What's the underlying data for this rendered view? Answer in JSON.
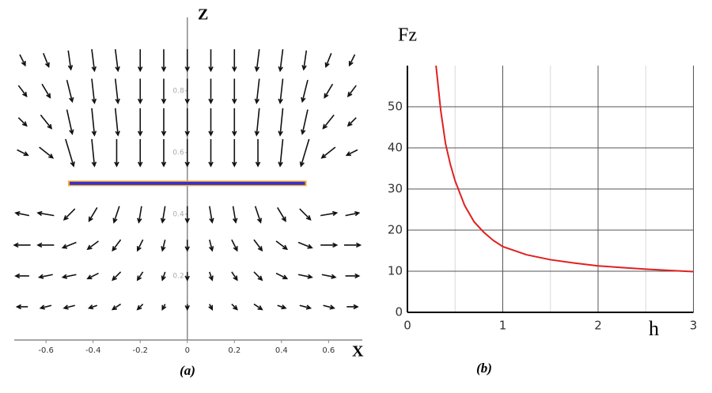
{
  "chart_data": [
    {
      "type": "quiver",
      "caption": "(a)",
      "xlabel": "X",
      "ylabel": "Z",
      "xlim": [
        -0.74,
        0.75
      ],
      "ylim": [
        0,
        1.02
      ],
      "xticks": [
        -0.6,
        -0.4,
        -0.2,
        0,
        0.2,
        0.4,
        0.6
      ],
      "yticks": [
        0.2,
        0.4,
        0.6,
        0.8
      ],
      "color": "#111111",
      "x": [
        -0.7,
        -0.6,
        -0.5,
        -0.4,
        -0.3,
        -0.2,
        -0.1,
        0,
        0.1,
        0.2,
        0.3,
        0.4,
        0.5,
        0.6,
        0.7
      ],
      "z": [
        0.9,
        0.8,
        0.7,
        0.6,
        0.4,
        0.3,
        0.2,
        0.1
      ],
      "u": [
        [
          0.2,
          0.2,
          0.1,
          0.1,
          0.1,
          0,
          0,
          0,
          0,
          0,
          -0.1,
          -0.1,
          -0.1,
          -0.2,
          -0.2
        ],
        [
          0.3,
          0.3,
          0.2,
          0.1,
          0.1,
          0,
          0,
          0,
          0,
          0,
          -0.1,
          -0.1,
          -0.2,
          -0.3,
          -0.3
        ],
        [
          0.3,
          0.4,
          0.2,
          0.1,
          0.1,
          0,
          0,
          0,
          0,
          0,
          -0.1,
          -0.1,
          -0.2,
          -0.4,
          -0.3
        ],
        [
          0.4,
          0.5,
          0.3,
          0.1,
          0,
          0,
          0,
          0,
          0,
          0,
          0,
          -0.1,
          -0.3,
          -0.5,
          -0.4
        ],
        [
          -0.5,
          -0.6,
          -0.4,
          -0.3,
          -0.2,
          -0.1,
          -0.1,
          0,
          0.1,
          0.1,
          0.2,
          0.3,
          0.4,
          0.6,
          0.5
        ],
        [
          -0.6,
          -0.6,
          -0.5,
          -0.4,
          -0.3,
          -0.2,
          -0.1,
          0,
          0.1,
          0.2,
          0.3,
          0.4,
          0.5,
          0.6,
          0.6
        ],
        [
          -0.5,
          -0.5,
          -0.5,
          -0.4,
          -0.3,
          -0.2,
          -0.1,
          0,
          0.1,
          0.2,
          0.3,
          0.4,
          0.5,
          0.5,
          0.5
        ],
        [
          -0.4,
          -0.4,
          -0.4,
          -0.3,
          -0.3,
          -0.2,
          -0.1,
          0,
          0.1,
          0.2,
          0.3,
          0.3,
          0.4,
          0.4,
          0.4
        ]
      ],
      "v": [
        [
          -0.4,
          -0.5,
          -0.7,
          -0.8,
          -0.8,
          -0.8,
          -0.8,
          -0.8,
          -0.8,
          -0.8,
          -0.8,
          -0.8,
          -0.7,
          -0.5,
          -0.4
        ],
        [
          -0.4,
          -0.5,
          -0.8,
          -0.9,
          -0.9,
          -0.9,
          -0.9,
          -0.9,
          -0.9,
          -0.9,
          -0.9,
          -0.9,
          -0.8,
          -0.5,
          -0.4
        ],
        [
          -0.3,
          -0.5,
          -0.9,
          -1,
          -1,
          -1,
          -1,
          -1,
          -1,
          -1,
          -1,
          -1,
          -0.9,
          -0.5,
          -0.3
        ],
        [
          -0.2,
          -0.4,
          -1,
          -1,
          -1,
          -1,
          -1,
          -1,
          -1,
          -1,
          -1,
          -1,
          -1,
          -0.4,
          -0.2
        ],
        [
          0.1,
          0.1,
          -0.4,
          -0.5,
          -0.6,
          -0.6,
          -0.6,
          -0.6,
          -0.6,
          -0.6,
          -0.6,
          -0.5,
          -0.4,
          0.1,
          0.1
        ],
        [
          0,
          0,
          -0.2,
          -0.3,
          -0.4,
          -0.4,
          -0.4,
          -0.4,
          -0.4,
          -0.4,
          -0.4,
          -0.3,
          -0.2,
          0,
          0
        ],
        [
          0,
          -0.1,
          -0.1,
          -0.2,
          -0.3,
          -0.3,
          -0.3,
          -0.3,
          -0.3,
          -0.3,
          -0.3,
          -0.2,
          -0.1,
          -0.1,
          0
        ],
        [
          0,
          -0.1,
          -0.1,
          -0.1,
          -0.2,
          -0.2,
          -0.2,
          -0.2,
          -0.2,
          -0.2,
          -0.2,
          -0.1,
          -0.1,
          -0.1,
          0
        ]
      ],
      "plate": {
        "x": [
          -0.5,
          0.5
        ],
        "z": 0.5,
        "color": "#3a2fd0",
        "edge_color": "#f0b030"
      }
    },
    {
      "type": "line",
      "caption": "(b)",
      "xlabel": "h",
      "ylabel": "Fz",
      "xlim": [
        0,
        3
      ],
      "ylim": [
        0,
        60
      ],
      "xticks": [
        0,
        1,
        2,
        3
      ],
      "yticks": [
        0,
        10,
        20,
        30,
        40,
        50
      ],
      "minor_xticks": [
        0.5,
        1.5,
        2.5
      ],
      "grid": true,
      "x": [
        0.3,
        0.35,
        0.4,
        0.45,
        0.5,
        0.6,
        0.7,
        0.8,
        0.9,
        1,
        1.25,
        1.5,
        1.75,
        2,
        2.25,
        2.5,
        2.75,
        3
      ],
      "series": [
        {
          "color": "#e02020",
          "values": [
            60,
            49,
            41,
            36,
            32,
            26,
            22,
            19.5,
            17.5,
            16,
            14,
            12.8,
            12,
            11.3,
            10.9,
            10.5,
            10.2,
            9.9
          ]
        }
      ]
    }
  ]
}
